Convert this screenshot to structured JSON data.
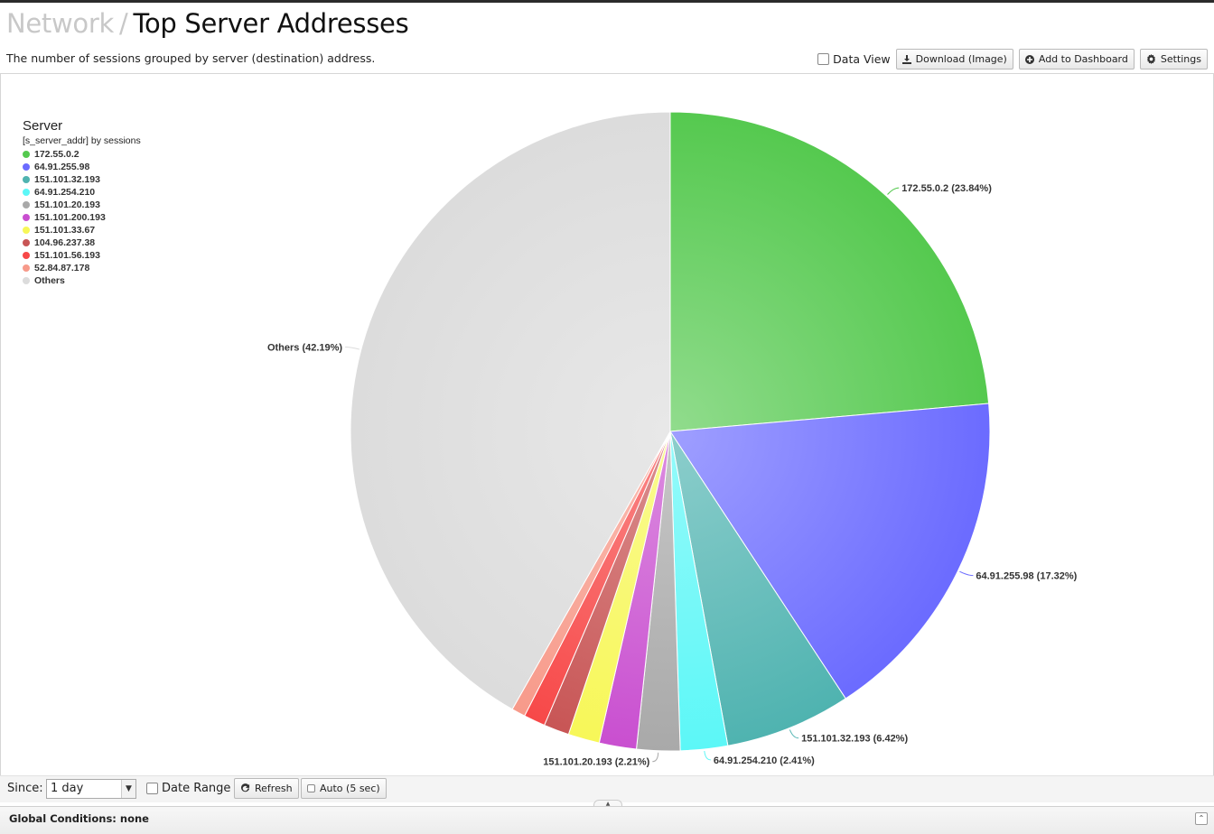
{
  "header": {
    "breadcrumb": "Network",
    "separator": "/",
    "title": "Top Server Addresses",
    "description": "The number of sessions grouped by server (destination) address."
  },
  "toolbar": {
    "data_view_label": "Data View",
    "download_label": "Download (Image)",
    "add_dashboard_label": "Add to Dashboard",
    "settings_label": "Settings",
    "download_icon": "download-icon",
    "add_icon": "plus-circle-icon",
    "settings_icon": "gear-icon"
  },
  "legend": {
    "title": "Server",
    "subtitle": "[s_server_addr] by sessions"
  },
  "chart_data": {
    "type": "pie",
    "title": "",
    "slices": [
      {
        "name": "172.55.0.2",
        "value": 23.84,
        "label": "172.55.0.2 (23.84%)",
        "color": "#55c94f"
      },
      {
        "name": "64.91.255.98",
        "value": 17.32,
        "label": "64.91.255.98 (17.32%)",
        "color": "#6b6bff"
      },
      {
        "name": "151.101.32.193",
        "value": 6.42,
        "label": "151.101.32.193 (6.42%)",
        "color": "#4fb3b0"
      },
      {
        "name": "64.91.254.210",
        "value": 2.41,
        "label": "64.91.254.210 (2.41%)",
        "color": "#5cf7f7"
      },
      {
        "name": "151.101.20.193",
        "value": 2.21,
        "label": "151.101.20.193 (2.21%)",
        "color": "#a9a9a9"
      },
      {
        "name": "151.101.200.193",
        "value": 1.9,
        "label": "",
        "color": "#c94fd0"
      },
      {
        "name": "151.101.33.67",
        "value": 1.6,
        "label": "",
        "color": "#f7f758"
      },
      {
        "name": "104.96.237.38",
        "value": 1.3,
        "label": "",
        "color": "#c85555"
      },
      {
        "name": "151.101.56.193",
        "value": 1.1,
        "label": "",
        "color": "#f74848"
      },
      {
        "name": "52.84.87.178",
        "value": 0.7,
        "label": "",
        "color": "#f79a8a"
      },
      {
        "name": "Others",
        "value": 42.19,
        "label": "Others (42.19%)",
        "color": "#dcdcdc"
      }
    ]
  },
  "footer": {
    "since_label": "Since:",
    "since_value": "1 day",
    "date_range_label": "Date Range",
    "refresh_label": "Refresh",
    "auto_label": "Auto (5 sec)",
    "global_conditions": "Global Conditions: none"
  }
}
